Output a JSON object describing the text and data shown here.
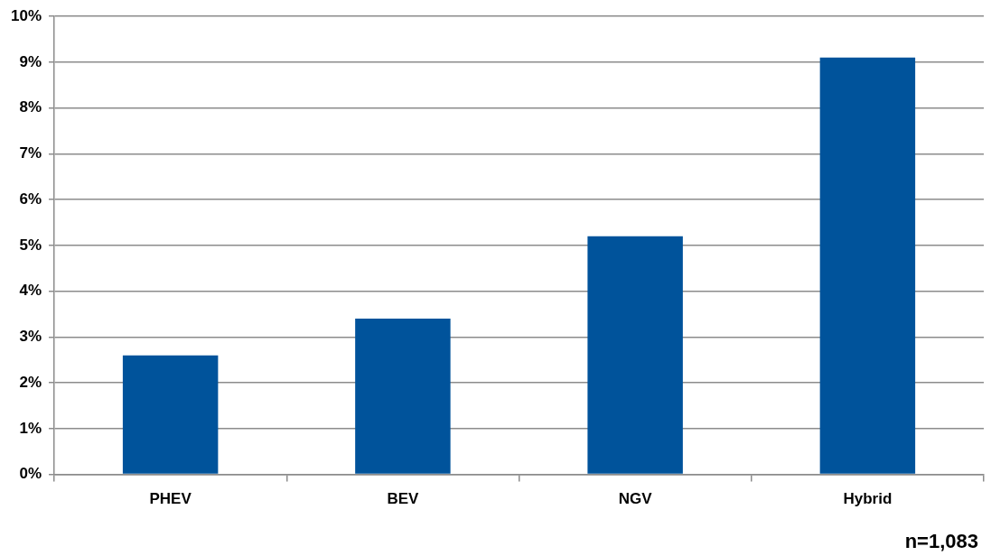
{
  "chart_data": {
    "type": "bar",
    "categories": [
      "PHEV",
      "BEV",
      "NGV",
      "Hybrid"
    ],
    "values": [
      2.6,
      3.4,
      5.2,
      9.1
    ],
    "color": "#00539b",
    "ylim": [
      0,
      10
    ],
    "yticks": [
      {
        "value": 0,
        "label": "0%"
      },
      {
        "value": 1,
        "label": "1%"
      },
      {
        "value": 2,
        "label": "2%"
      },
      {
        "value": 3,
        "label": "3%"
      },
      {
        "value": 4,
        "label": "4%"
      },
      {
        "value": 5,
        "label": "5%"
      },
      {
        "value": 6,
        "label": "6%"
      },
      {
        "value": 7,
        "label": "7%"
      },
      {
        "value": 8,
        "label": "8%"
      },
      {
        "value": 9,
        "label": "9%"
      },
      {
        "value": 10,
        "label": "10%"
      }
    ],
    "grid": "y",
    "legend": false,
    "annotations": [
      "n=1,083"
    ]
  }
}
